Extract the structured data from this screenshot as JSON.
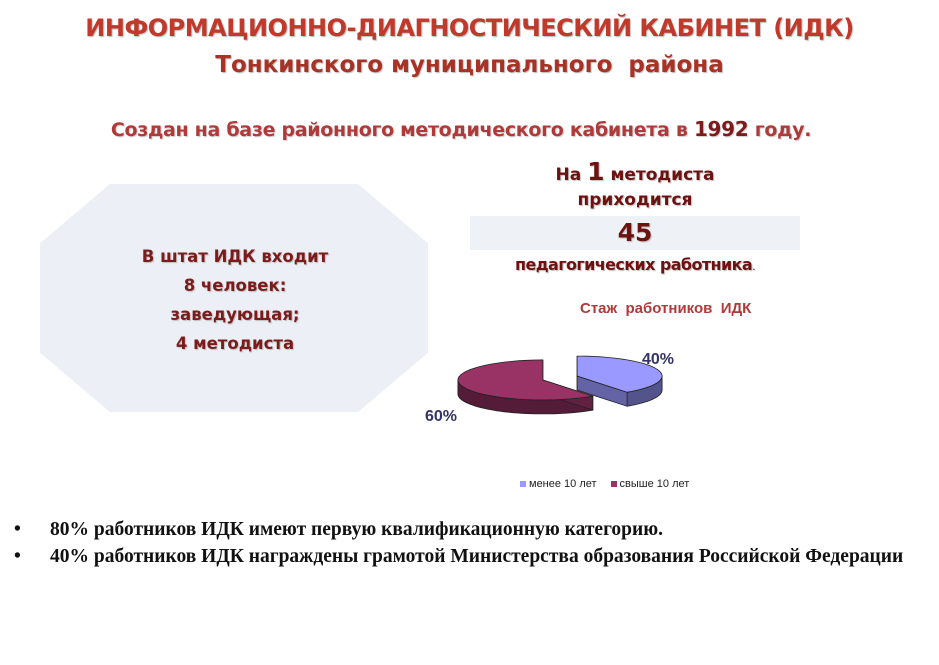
{
  "header": {
    "title": "ИНФОРМАЦИОННО-ДИАГНОСТИЧЕСКИЙ КАБИНЕТ (ИДК)",
    "subtitle": "Тонкинского муниципального  района"
  },
  "created": {
    "prefix": "Создан на базе районного методического кабинета в ",
    "year": "1992",
    "suffix": " году."
  },
  "staff": {
    "line1": "В штат ИДК входит",
    "line2": "8 человек:",
    "line3": "заведующая;",
    "line4": "4 методиста"
  },
  "ratio": {
    "na": "На ",
    "one": "1",
    "methodist": " методиста",
    "falls": "приходится",
    "number": "45",
    "teachers": "педагогических работника",
    "period": "."
  },
  "chart_data": {
    "type": "pie",
    "title": "Стаж  работников  ИДК",
    "categories": [
      "менее 10 лет",
      "свыше 10 лет"
    ],
    "values": [
      40,
      60
    ],
    "data_labels": [
      "40%",
      "60%"
    ],
    "colors": [
      "#9999ff",
      "#993366"
    ],
    "legend": "bottom"
  },
  "bullets": [
    {
      "marker": "•",
      "text": "80%  работников ИДК  имеют  первую квалификационную категорию."
    },
    {
      "marker": "•",
      "text": "40% работников ИДК  награждены грамотой Министерства образования Российской Федерации"
    }
  ]
}
